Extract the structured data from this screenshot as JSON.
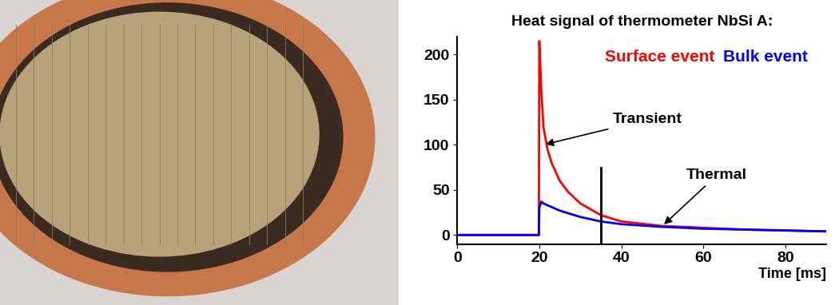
{
  "chart_data": {
    "type": "line",
    "title": "Heat signal of thermometer NbSi A:",
    "x_label": "Time [ms]",
    "xlim": [
      0,
      90
    ],
    "xticks": [
      0,
      20,
      40,
      60,
      80
    ],
    "ylim": [
      -10,
      220
    ],
    "yticks": [
      0,
      50,
      100,
      150,
      200
    ],
    "grid": false,
    "series": [
      {
        "name": "Surface event",
        "color": "#ff0000",
        "x": [
          0,
          10,
          19.9,
          20,
          20.5,
          21,
          22,
          23,
          25,
          27,
          30,
          35,
          40,
          50,
          60,
          70,
          80,
          90
        ],
        "values": [
          0,
          0,
          0,
          215,
          160,
          120,
          95,
          80,
          60,
          48,
          35,
          22,
          15,
          10,
          8,
          6,
          5,
          4
        ]
      },
      {
        "name": "Bulk event",
        "color": "#0000ff",
        "x": [
          0,
          10,
          19.9,
          20,
          20.5,
          21,
          22,
          25,
          30,
          35,
          40,
          50,
          60,
          70,
          80,
          90
        ],
        "values": [
          0,
          0,
          0,
          30,
          37,
          35,
          33,
          27,
          20,
          15,
          12,
          9,
          7,
          6,
          5,
          4
        ]
      }
    ],
    "annotations": [
      {
        "text": "Transient",
        "xy": [
          21,
          100
        ]
      },
      {
        "text": "Thermal",
        "xy": [
          50,
          10
        ]
      }
    ],
    "marker_line": {
      "x": 35,
      "y_range": [
        -10,
        75
      ]
    }
  }
}
